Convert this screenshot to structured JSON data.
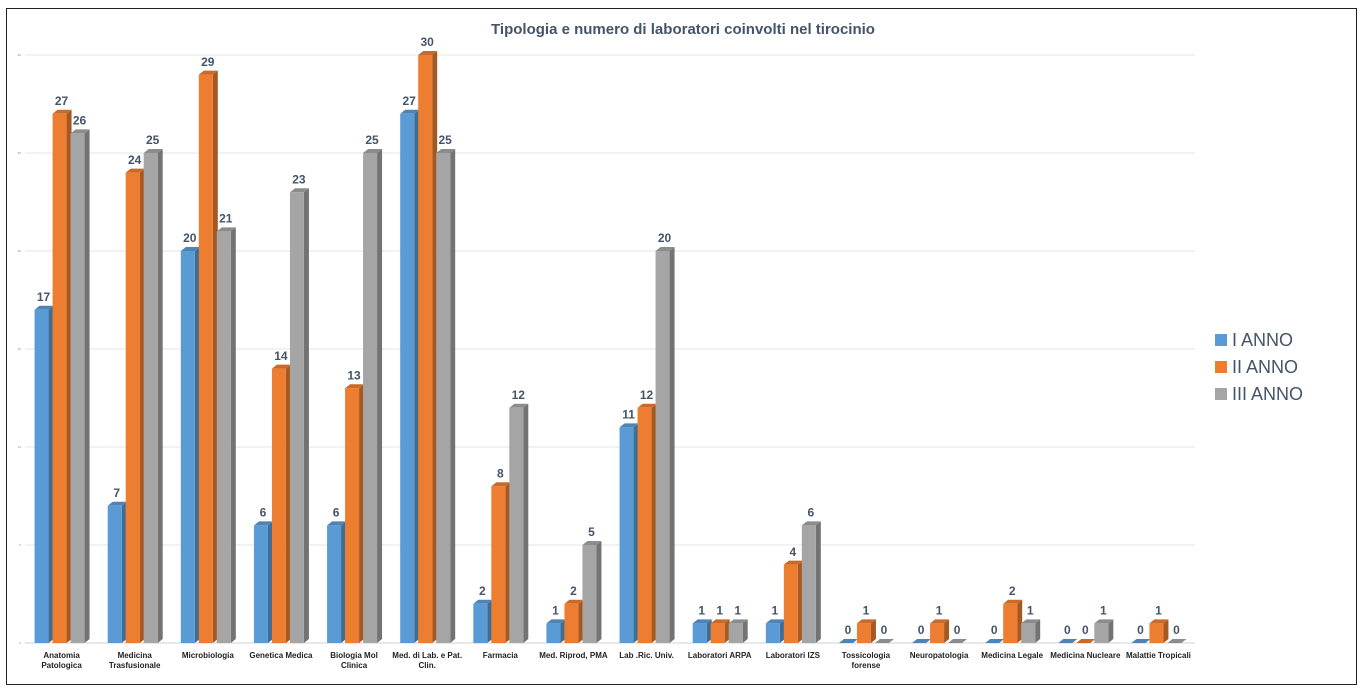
{
  "chart_data": {
    "type": "bar3d",
    "title": "Tipologia e numero di laboratori coinvolti nel tirocinio",
    "categories": [
      "Anatomia Patologica",
      "Medicina Trasfusionale",
      "Microbiologia",
      "Genetica Medica",
      "Biologia Mol Clinica",
      "Med. di Lab. e Pat. Clin.",
      "Farmacia",
      "Med. Riprod, PMA",
      "Lab .Ric. Univ.",
      "Laboratori ARPA",
      "Laboratori IZS",
      "Tossicologia forense",
      "Neuropatologia",
      "Medicina Legale",
      "Medicina Nucleare",
      "Malattie Tropicali"
    ],
    "series": [
      {
        "name": "I ANNO",
        "color": "#5b9bd5",
        "values": [
          17,
          7,
          20,
          6,
          6,
          27,
          2,
          1,
          11,
          1,
          1,
          0,
          0,
          0,
          0,
          0
        ]
      },
      {
        "name": "II ANNO",
        "color": "#ed7d31",
        "values": [
          27,
          24,
          29,
          14,
          13,
          30,
          8,
          2,
          12,
          1,
          4,
          1,
          1,
          2,
          0,
          1
        ]
      },
      {
        "name": "III ANNO",
        "color": "#a5a5a5",
        "values": [
          26,
          25,
          21,
          23,
          25,
          25,
          12,
          5,
          20,
          1,
          6,
          0,
          0,
          1,
          1,
          0
        ]
      }
    ],
    "ylim": [
      0,
      30
    ],
    "yticks": [
      0,
      5,
      10,
      15,
      20,
      25,
      30
    ],
    "grid": true,
    "legend": "right"
  }
}
